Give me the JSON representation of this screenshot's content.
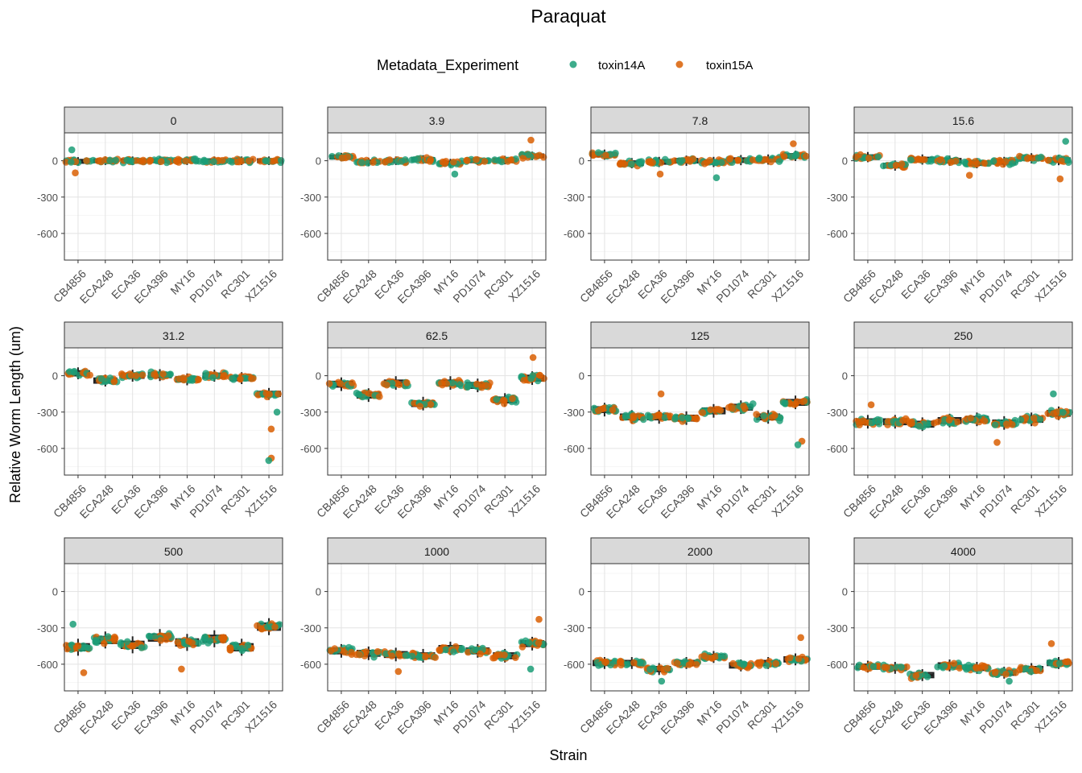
{
  "chart_data": {
    "type": "box-jitter-facet",
    "title": "Paraquat",
    "xlabel": "Strain",
    "ylabel": "Relative Worm Length (um)",
    "legend": {
      "title": "Metadata_Experiment",
      "position": "top",
      "entries": [
        {
          "name": "toxin14A",
          "color": "#1B9E77"
        },
        {
          "name": "toxin15A",
          "color": "#D95F02"
        }
      ]
    },
    "strains": [
      "CB4856",
      "ECA248",
      "ECA36",
      "ECA396",
      "MY16",
      "PD1074",
      "RC301",
      "XZ1516"
    ],
    "ylim": [
      -820,
      230
    ],
    "yticks": [
      0,
      -300,
      -600
    ],
    "ytick_labels": [
      "0",
      "-300",
      "-600"
    ],
    "box_color": "#222222",
    "box_fill": "#666666",
    "facets": [
      {
        "label": "0",
        "medians": [
          -5,
          0,
          0,
          0,
          0,
          0,
          0,
          0
        ],
        "spread": 25,
        "outliers": [
          [
            0,
            -100
          ],
          [
            0,
            90
          ]
        ]
      },
      {
        "label": "3.9",
        "medians": [
          30,
          -10,
          0,
          10,
          -20,
          0,
          5,
          40
        ],
        "spread": 25,
        "outliers": [
          [
            7,
            170
          ],
          [
            4,
            -110
          ]
        ]
      },
      {
        "label": "7.8",
        "medians": [
          50,
          -20,
          -10,
          0,
          -10,
          5,
          10,
          40
        ],
        "spread": 30,
        "outliers": [
          [
            2,
            -110
          ],
          [
            4,
            -140
          ],
          [
            7,
            140
          ]
        ]
      },
      {
        "label": "15.6",
        "medians": [
          30,
          -40,
          10,
          0,
          -20,
          -10,
          20,
          5
        ],
        "spread": 30,
        "outliers": [
          [
            4,
            -120
          ],
          [
            7,
            160
          ],
          [
            7,
            -150
          ]
        ]
      },
      {
        "label": "31.2",
        "medians": [
          20,
          -40,
          0,
          5,
          -30,
          0,
          -20,
          -150
        ],
        "spread": 35,
        "outliers": [
          [
            7,
            -680
          ],
          [
            7,
            -700
          ],
          [
            7,
            -440
          ],
          [
            7,
            -300
          ]
        ]
      },
      {
        "label": "62.5",
        "medians": [
          -70,
          -160,
          -60,
          -230,
          -60,
          -80,
          -200,
          -20
        ],
        "spread": 40,
        "outliers": [
          [
            7,
            150
          ]
        ]
      },
      {
        "label": "125",
        "medians": [
          -280,
          -340,
          -340,
          -350,
          -290,
          -260,
          -340,
          -220
        ],
        "spread": 40,
        "outliers": [
          [
            7,
            -540
          ],
          [
            7,
            -570
          ],
          [
            2,
            -150
          ]
        ]
      },
      {
        "label": "250",
        "medians": [
          -380,
          -380,
          -400,
          -370,
          -360,
          -390,
          -360,
          -310
        ],
        "spread": 40,
        "outliers": [
          [
            0,
            -240
          ],
          [
            7,
            -150
          ],
          [
            5,
            -550
          ]
        ]
      },
      {
        "label": "500",
        "medians": [
          -460,
          -400,
          -440,
          -380,
          -420,
          -390,
          -460,
          -290
        ],
        "spread": 50,
        "outliers": [
          [
            0,
            -670
          ],
          [
            0,
            -270
          ],
          [
            4,
            -640
          ]
        ]
      },
      {
        "label": "1000",
        "medians": [
          -490,
          -510,
          -520,
          -530,
          -470,
          -490,
          -530,
          -430
        ],
        "spread": 40,
        "outliers": [
          [
            7,
            -230
          ],
          [
            7,
            -640
          ],
          [
            2,
            -660
          ]
        ]
      },
      {
        "label": "2000",
        "medians": [
          -590,
          -590,
          -640,
          -590,
          -540,
          -610,
          -590,
          -560
        ],
        "spread": 35,
        "outliers": [
          [
            7,
            -380
          ],
          [
            2,
            -740
          ]
        ]
      },
      {
        "label": "4000",
        "medians": [
          -620,
          -630,
          -690,
          -610,
          -630,
          -670,
          -640,
          -590
        ],
        "spread": 35,
        "outliers": [
          [
            7,
            -430
          ],
          [
            5,
            -740
          ]
        ]
      }
    ]
  }
}
